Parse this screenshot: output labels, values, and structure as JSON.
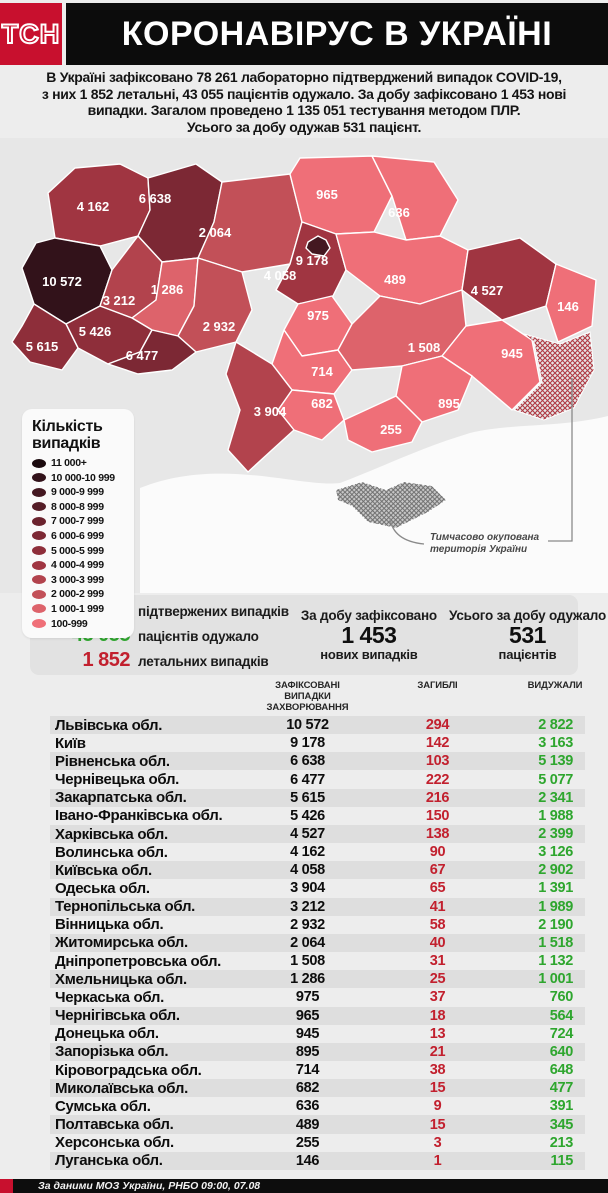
{
  "header": {
    "logo": "ТСН",
    "title": "КОРОНАВІРУС В УКРАЇНІ"
  },
  "intro": {
    "lines": [
      "В Україні зафіксовано 78 261 лабораторно підтверджений випадок COVID-19,",
      "з них 1 852 летальні, 43 055 пацієнтів одужало. За добу зафіксовано 1 453 нові",
      "випадки. Загалом проведено 1 135 051 тестування методом ПЛР.",
      "Усього за добу одужав 531 пацієнт."
    ]
  },
  "map": {
    "occupied_note_line1": "Тимчасово окупована",
    "occupied_note_line2": "територія України",
    "legend": {
      "title_line1": "Кількість",
      "title_line2": "випадків",
      "items": [
        {
          "range": "11 000+",
          "color": "#1b0a0e"
        },
        {
          "range": "10 000-10 999",
          "color": "#32121a"
        },
        {
          "range": "9 000-9 999",
          "color": "#441821"
        },
        {
          "range": "8 000-8 999",
          "color": "#551d27"
        },
        {
          "range": "7 000-7 999",
          "color": "#6b232e"
        },
        {
          "range": "6 000-6 999",
          "color": "#7c2834"
        },
        {
          "range": "5 000-5 999",
          "color": "#8e2e3a"
        },
        {
          "range": "4 000-4 999",
          "color": "#a03541"
        },
        {
          "range": "3 000-3 999",
          "color": "#b2434d"
        },
        {
          "range": "2 000-2 999",
          "color": "#c25058"
        },
        {
          "range": "1 000-1 999",
          "color": "#dd636b"
        },
        {
          "range": "100-999",
          "color": "#ef6f78"
        }
      ]
    },
    "regions": [
      {
        "id": "volyn",
        "cases": "4 162",
        "fill": "#a03541"
      },
      {
        "id": "rivne",
        "cases": "6 638",
        "fill": "#7c2834"
      },
      {
        "id": "zhytomyr",
        "cases": "2 064",
        "fill": "#c25058"
      },
      {
        "id": "chernihiv",
        "cases": "965",
        "fill": "#ef6f78"
      },
      {
        "id": "sumy",
        "cases": "636",
        "fill": "#ef6f78"
      },
      {
        "id": "kyiv_obl",
        "cases": "4 058",
        "fill": "#a03541"
      },
      {
        "id": "poltava",
        "cases": "489",
        "fill": "#ef6f78"
      },
      {
        "id": "kharkiv",
        "cases": "4 527",
        "fill": "#a03541"
      },
      {
        "id": "luhansk",
        "cases": "146",
        "fill": "#ef6f78"
      },
      {
        "id": "lviv",
        "cases": "10 572",
        "fill": "#32121a"
      },
      {
        "id": "ternopil",
        "cases": "3 212",
        "fill": "#b2434d"
      },
      {
        "id": "khmelnytskyi",
        "cases": "1 286",
        "fill": "#dd636b"
      },
      {
        "id": "vinnytsia",
        "cases": "2 932",
        "fill": "#c25058"
      },
      {
        "id": "cherkasy",
        "cases": "975",
        "fill": "#ef6f78"
      },
      {
        "id": "kirovohrad",
        "cases": "714",
        "fill": "#ef6f78"
      },
      {
        "id": "dnipro",
        "cases": "1 508",
        "fill": "#dd636b"
      },
      {
        "id": "donetsk",
        "cases": "945",
        "fill": "#ef6f78"
      },
      {
        "id": "zaporizhzhia",
        "cases": "895",
        "fill": "#ef6f78"
      },
      {
        "id": "mykolaiv",
        "cases": "682",
        "fill": "#ef6f78"
      },
      {
        "id": "kherson",
        "cases": "255",
        "fill": "#ef6f78"
      },
      {
        "id": "odesa",
        "cases": "3 904",
        "fill": "#b2434d"
      },
      {
        "id": "ivano_frankivsk",
        "cases": "5 426",
        "fill": "#8e2e3a"
      },
      {
        "id": "zakarpattia",
        "cases": "5 615",
        "fill": "#8e2e3a"
      },
      {
        "id": "chernivtsi",
        "cases": "6 477",
        "fill": "#7c2834"
      },
      {
        "id": "kyiv_city",
        "cases": "9 178",
        "fill": "#441821"
      }
    ]
  },
  "stats": {
    "confirmed": {
      "value": "78 261",
      "label": "підтвержених випадків"
    },
    "recovered": {
      "value": "43 055",
      "label": "пацієнтів одужало"
    },
    "deaths": {
      "value": "1 852",
      "label": "летальних випадків"
    },
    "daily_cases": {
      "title": "За добу зафіксовано",
      "value": "1 453",
      "sub": "нових випадків"
    },
    "daily_recovered": {
      "title": "Усього за добу одужало",
      "value": "531",
      "sub": "пацієнтів"
    }
  },
  "table": {
    "headers": {
      "cases": "ЗАФІКСОВАНІ\nВИПАДКИ\nЗАХВОРЮВАННЯ",
      "deaths": "ЗАГИБЛІ",
      "recovered": "ВИДУЖАЛИ"
    },
    "rows": [
      {
        "region": "Львівська обл.",
        "cases": "10 572",
        "deaths": "294",
        "recovered": "2 822"
      },
      {
        "region": "Київ",
        "cases": "9 178",
        "deaths": "142",
        "recovered": "3 163"
      },
      {
        "region": "Рівненська обл.",
        "cases": "6 638",
        "deaths": "103",
        "recovered": "5 139"
      },
      {
        "region": "Чернівецька обл.",
        "cases": "6 477",
        "deaths": "222",
        "recovered": "5 077"
      },
      {
        "region": "Закарпатська обл.",
        "cases": "5 615",
        "deaths": "216",
        "recovered": "2 341"
      },
      {
        "region": "Івано-Франківська обл.",
        "cases": "5 426",
        "deaths": "150",
        "recovered": "1 988"
      },
      {
        "region": "Харківська обл.",
        "cases": "4 527",
        "deaths": "138",
        "recovered": "2 399"
      },
      {
        "region": "Волинська обл.",
        "cases": "4 162",
        "deaths": "90",
        "recovered": "3 126"
      },
      {
        "region": "Київська обл.",
        "cases": "4 058",
        "deaths": "67",
        "recovered": "2 902"
      },
      {
        "region": "Одеська обл.",
        "cases": "3 904",
        "deaths": "65",
        "recovered": "1 391"
      },
      {
        "region": "Тернопільська обл.",
        "cases": "3 212",
        "deaths": "41",
        "recovered": "1 989"
      },
      {
        "region": "Вінницька обл.",
        "cases": "2 932",
        "deaths": "58",
        "recovered": "2 190"
      },
      {
        "region": "Житомирська обл.",
        "cases": "2 064",
        "deaths": "40",
        "recovered": "1 518"
      },
      {
        "region": "Дніпропетровська обл.",
        "cases": "1 508",
        "deaths": "31",
        "recovered": "1 132"
      },
      {
        "region": "Хмельницька обл.",
        "cases": "1 286",
        "deaths": "25",
        "recovered": "1 001"
      },
      {
        "region": "Черкаська обл.",
        "cases": "975",
        "deaths": "37",
        "recovered": "760"
      },
      {
        "region": "Чернігівська обл.",
        "cases": "965",
        "deaths": "18",
        "recovered": "564"
      },
      {
        "region": "Донецька обл.",
        "cases": "945",
        "deaths": "13",
        "recovered": "724"
      },
      {
        "region": "Запорізька обл.",
        "cases": "895",
        "deaths": "21",
        "recovered": "640"
      },
      {
        "region": "Кіровоградська обл.",
        "cases": "714",
        "deaths": "38",
        "recovered": "648"
      },
      {
        "region": "Миколаївська обл.",
        "cases": "682",
        "deaths": "15",
        "recovered": "477"
      },
      {
        "region": "Сумська обл.",
        "cases": "636",
        "deaths": "9",
        "recovered": "391"
      },
      {
        "region": "Полтавська обл.",
        "cases": "489",
        "deaths": "15",
        "recovered": "345"
      },
      {
        "region": "Херсонська обл.",
        "cases": "255",
        "deaths": "3",
        "recovered": "213"
      },
      {
        "region": "Луганська обл.",
        "cases": "146",
        "deaths": "1",
        "recovered": "115"
      }
    ]
  },
  "footer": {
    "text": "За даними МОЗ України, РНБО  09:00, 07.08"
  },
  "colors": {
    "brand_red": "#c8102e",
    "green": "#2ea62e",
    "red": "#c2202e"
  }
}
